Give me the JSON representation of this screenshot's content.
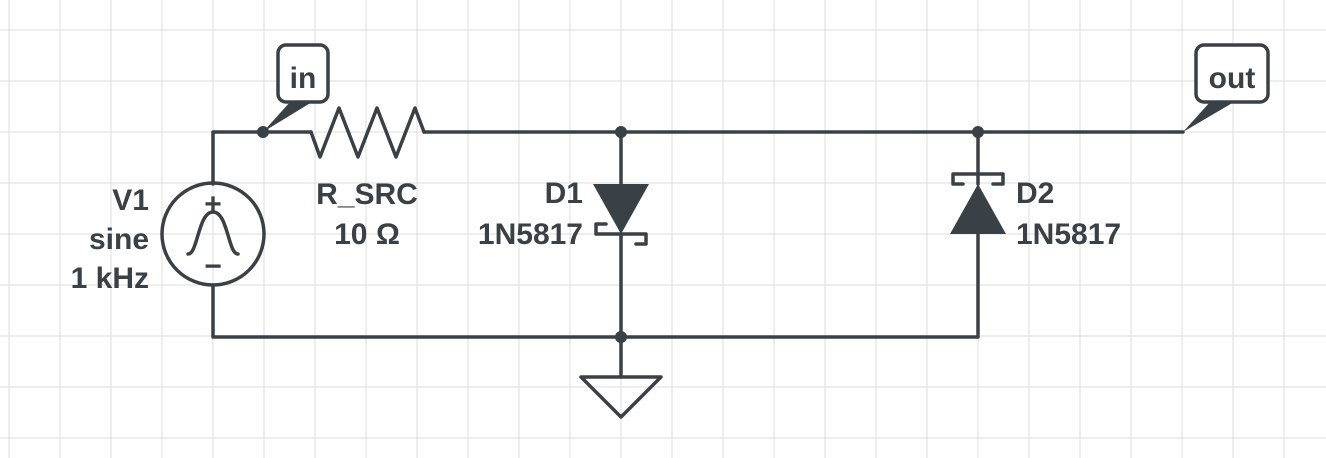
{
  "components": {
    "v1": {
      "name": "V1",
      "type": "sine",
      "freq": "1 kHz",
      "plus": "+",
      "minus": "−"
    },
    "r_src": {
      "name": "R_SRC",
      "value": "10 Ω"
    },
    "d1": {
      "name": "D1",
      "part": "1N5817"
    },
    "d2": {
      "name": "D2",
      "part": "1N5817"
    }
  },
  "net_labels": {
    "in": "in",
    "out": "out"
  },
  "colors": {
    "line": "#3a4146",
    "grid": "#dddddd",
    "background": "#ffffff"
  }
}
